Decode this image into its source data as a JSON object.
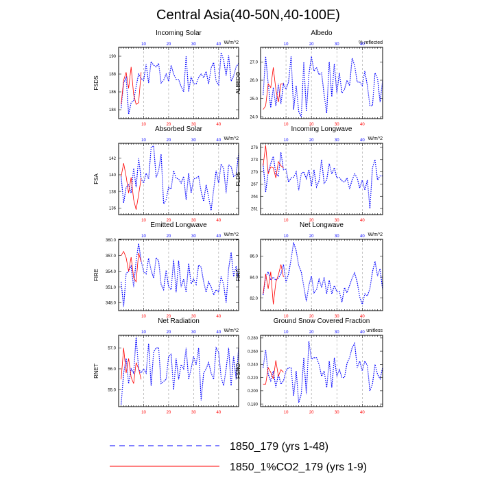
{
  "title": "Central Asia(40-50N,40-100E)",
  "colors": {
    "blue_series": "#0000ff",
    "red_series": "#ff0000",
    "frame": "#000000",
    "grid": "#9a9a9a"
  },
  "legend": {
    "items": [
      {
        "label": "1850_179 (yrs 1-48)",
        "color": "#0000ff",
        "style": "dashed"
      },
      {
        "label": "1850_1%CO2_179 (yrs 1-9)",
        "color": "#ff0000",
        "style": "solid"
      }
    ]
  },
  "chart_data": [
    {
      "type": "line",
      "title": "Incoming Solar",
      "ylabel": "FSDS",
      "units": "W/m^2",
      "xlim": [
        0,
        48
      ],
      "ylim": [
        183,
        191
      ],
      "yticks": [
        184,
        186,
        188,
        190
      ],
      "ydecimals": 0,
      "top_xticks": [
        10,
        20,
        30,
        40
      ],
      "bottom_xticks": [
        10,
        20,
        30,
        40
      ],
      "grid": "vertical dashed at 10,20,30,40",
      "series": [
        {
          "name": "1850_179 (yrs 1-48)",
          "values": [
            184.2,
            187.0,
            187.6,
            183.5,
            184.8,
            185.0,
            186.6,
            188.0,
            187.5,
            187.3,
            189.1,
            187.0,
            189.4,
            189.0,
            188.8,
            189.2,
            187.0,
            187.3,
            188.0,
            187.2,
            189.0,
            188.0,
            187.4,
            187.4,
            186.6,
            186.0,
            190.0,
            186.0,
            187.7,
            186.9,
            186.9,
            187.6,
            188.0,
            187.6,
            188.3,
            186.9,
            188.7,
            189.3,
            187.2,
            186.8,
            190.4,
            189.6,
            187.8,
            190.1,
            187.2,
            187.8,
            188.8,
            189.2
          ]
        },
        {
          "name": "1850_1%CO2_179 (yrs 1-9)",
          "values": [
            184.6,
            187.3,
            188.2,
            186.4,
            188.8,
            185.7,
            184.6,
            184.8,
            188.2
          ]
        }
      ]
    },
    {
      "type": "line",
      "title": "Albedo",
      "ylabel": "ALBEDO",
      "units": "% reflected",
      "xlim": [
        0,
        48
      ],
      "ylim": [
        23.9,
        27.8
      ],
      "yticks": [
        24.0,
        25.0,
        26.0,
        27.0
      ],
      "ydecimals": 1,
      "top_xticks": [
        10,
        20,
        30,
        40
      ],
      "bottom_xticks": [
        10,
        20,
        30,
        40
      ],
      "grid": "vertical dashed at 10,20,30,40",
      "series": [
        {
          "name": "1850_179 (yrs 1-48)",
          "values": [
            25.2,
            27.3,
            25.8,
            24.5,
            25.6,
            24.6,
            25.8,
            24.7,
            25.8,
            25.5,
            25.9,
            27.3,
            24.4,
            25.7,
            24.3,
            24.0,
            27.0,
            24.3,
            26.3,
            27.3,
            26.5,
            26.7,
            26.3,
            26.4,
            25.2,
            24.2,
            27.0,
            25.1,
            26.9,
            25.3,
            26.4,
            25.3,
            25.5,
            26.0,
            25.7,
            27.2,
            26.8,
            25.9,
            25.9,
            25.7,
            26.5,
            25.7,
            24.6,
            24.6,
            26.4,
            26.1,
            24.8,
            26.0
          ]
        },
        {
          "name": "1850_1%CO2_179 (yrs 1-9)",
          "values": [
            24.4,
            24.6,
            25.8,
            25.6,
            26.7,
            25.5,
            24.8,
            25.8,
            25.8
          ]
        }
      ]
    },
    {
      "type": "line",
      "title": "Absorbed Solar",
      "ylabel": "FSA",
      "units": "W/m^2",
      "xlim": [
        0,
        48
      ],
      "ylim": [
        135.2,
        143.8
      ],
      "yticks": [
        136,
        138,
        140,
        142
      ],
      "ydecimals": 0,
      "top_xticks": [
        10,
        20,
        30,
        40
      ],
      "bottom_xticks": [
        10,
        20,
        30,
        40
      ],
      "grid": "vertical dashed at 10,20,30,40",
      "series": [
        {
          "name": "1850_179 (yrs 1-48)",
          "values": [
            139.8,
            136.6,
            138.5,
            138.8,
            137.8,
            140.8,
            138.5,
            142.0,
            139.5,
            139.0,
            140.2,
            139.5,
            143.3,
            143.5,
            139.7,
            140.5,
            142.5,
            136.5,
            137.0,
            138.5,
            138.3,
            140.5,
            139.6,
            139.5,
            139.0,
            139.8,
            137.0,
            140.2,
            137.8,
            139.5,
            139.6,
            139.8,
            138.0,
            136.8,
            138.8,
            137.3,
            135.7,
            138.2,
            140.5,
            139.0,
            141.3,
            140.8,
            137.8,
            141.2,
            141.0,
            139.8,
            140.0,
            142.6
          ]
        },
        {
          "name": "1850_1%CO2_179 (yrs 1-9)",
          "values": [
            139.8,
            141.4,
            139.8,
            137.8,
            139.7,
            137.0,
            135.8,
            137.6,
            139.6
          ]
        }
      ]
    },
    {
      "type": "line",
      "title": "Incoming Longwave",
      "ylabel": "FLDS",
      "units": "W/m^2",
      "xlim": [
        0,
        48
      ],
      "ylim": [
        259.5,
        277
      ],
      "yticks": [
        261,
        264,
        267,
        270,
        273,
        276
      ],
      "ydecimals": 0,
      "top_xticks": [
        10,
        20,
        30,
        40
      ],
      "bottom_xticks": [
        10,
        20,
        30,
        40
      ],
      "grid": "vertical dashed at 10,20,30,40",
      "series": [
        {
          "name": "1850_179 (yrs 1-48)",
          "values": [
            272.0,
            265.0,
            270.0,
            272.0,
            273.8,
            269.5,
            269.0,
            274.8,
            270.5,
            270.6,
            267.5,
            268.5,
            268.7,
            270.0,
            265.5,
            269.5,
            270.0,
            268.3,
            270.5,
            266.5,
            270.5,
            266.3,
            267.8,
            273.0,
            267.2,
            268.0,
            272.0,
            269.5,
            271.0,
            268.5,
            268.6,
            267.8,
            267.5,
            268.5,
            265.8,
            268.0,
            269.5,
            268.5,
            266.0,
            268.0,
            265.5,
            268.0,
            261.0,
            271.0,
            273.0,
            268.0,
            269.0,
            269.0
          ]
        },
        {
          "name": "1850_1%CO2_179 (yrs 1-9)",
          "values": [
            271.5,
            276.5,
            269.5,
            271.2,
            271.0,
            268.5,
            272.5,
            271.5,
            271.0
          ]
        }
      ]
    },
    {
      "type": "line",
      "title": "Emitted Longwave",
      "ylabel": "FIRE",
      "units": "W/m^2",
      "xlim": [
        0,
        48
      ],
      "ylim": [
        346.5,
        360.1
      ],
      "yticks": [
        348.0,
        351.0,
        354.0,
        357.0,
        360.0
      ],
      "ydecimals": 1,
      "top_xticks": [
        10,
        20,
        30,
        40
      ],
      "bottom_xticks": [
        10,
        20,
        30,
        40
      ],
      "grid": "vertical dashed at 10,20,30,40",
      "series": [
        {
          "name": "1850_179 (yrs 1-48)",
          "values": [
            352.0,
            347.2,
            353.6,
            354.0,
            355.0,
            351.0,
            356.0,
            359.3,
            356.0,
            354.0,
            353.5,
            356.5,
            354.2,
            352.7,
            356.6,
            356.0,
            351.5,
            350.5,
            354.2,
            351.0,
            350.5,
            356.2,
            350.0,
            356.0,
            351.0,
            352.5,
            350.0,
            355.5,
            351.6,
            352.5,
            351.5,
            355.2,
            354.8,
            352.0,
            350.0,
            352.0,
            351.0,
            349.5,
            350.5,
            350.0,
            353.0,
            351.5,
            348.0,
            354.5,
            357.6,
            353.0,
            355.0,
            352.0
          ]
        },
        {
          "name": "1850_1%CO2_179 (yrs 1-9)",
          "values": [
            357.0,
            357.8,
            356.6,
            354.0,
            356.7,
            352.8,
            352.0,
            357.5,
            355.8
          ]
        }
      ]
    },
    {
      "type": "line",
      "title": "Net Longwave",
      "ylabel": "FIRA",
      "units": "W/m^2",
      "xlim": [
        0,
        48
      ],
      "ylim": [
        80.8,
        87.6
      ],
      "yticks": [
        82.0,
        84.0,
        86.0
      ],
      "ydecimals": 1,
      "top_xticks": [
        10,
        20,
        30,
        40
      ],
      "bottom_xticks": [
        10,
        20,
        30,
        40
      ],
      "grid": "vertical dashed at 10,20,30,40",
      "series": [
        {
          "name": "1850_179 (yrs 1-48)",
          "values": [
            82.3,
            84.0,
            84.5,
            83.7,
            84.0,
            83.7,
            83.9,
            84.3,
            85.2,
            83.5,
            84.3,
            85.7,
            87.3,
            86.5,
            85.1,
            84.5,
            83.1,
            81.7,
            83.2,
            84.1,
            82.5,
            82.8,
            83.8,
            83.0,
            84.0,
            82.4,
            83.7,
            82.4,
            83.2,
            82.6,
            82.6,
            81.6,
            83.0,
            82.5,
            83.2,
            83.9,
            84.4,
            83.5,
            82.1,
            81.4,
            82.4,
            82.2,
            82.9,
            84.5,
            85.5,
            84.1,
            84.8,
            82.8
          ]
        },
        {
          "name": "1850_1%CO2_179 (yrs 1-9)",
          "values": [
            82.4,
            84.3,
            82.9,
            84.5,
            81.4,
            83.5,
            84.2,
            85.2,
            84.0
          ]
        }
      ]
    },
    {
      "type": "line",
      "title": "Net Radiation",
      "ylabel": "RNET",
      "units": "W/m^2",
      "xlim": [
        0,
        48
      ],
      "ylim": [
        54.2,
        57.6
      ],
      "yticks": [
        55.0,
        56.0,
        57.0
      ],
      "ydecimals": 1,
      "top_xticks": [
        10,
        20,
        30,
        40
      ],
      "bottom_xticks": [
        10,
        20,
        30,
        40
      ],
      "grid": "vertical dashed at 10,20,30,40",
      "series": [
        {
          "name": "1850_179 (yrs 1-48)",
          "values": [
            54.3,
            55.8,
            56.5,
            55.3,
            56.0,
            55.8,
            57.5,
            56.0,
            55.8,
            56.0,
            55.8,
            57.2,
            55.2,
            56.8,
            57.0,
            57.0,
            55.3,
            55.4,
            55.5,
            56.6,
            56.7,
            55.0,
            56.5,
            55.5,
            56.2,
            56.0,
            57.0,
            55.5,
            56.0,
            56.6,
            56.2,
            57.0,
            54.5,
            55.8,
            56.0,
            56.3,
            55.8,
            55.5,
            57.0,
            56.8,
            55.6,
            55.2,
            56.0,
            57.0,
            55.2,
            56.6,
            55.5,
            57.0
          ]
        },
        {
          "name": "1850_1%CO2_179 (yrs 1-9)",
          "values": [
            55.5,
            57.0,
            55.8,
            56.5,
            55.6,
            55.3,
            56.3,
            56.0,
            55.5
          ]
        }
      ]
    },
    {
      "type": "line",
      "title": "Ground Snow Covered Fraction",
      "ylabel": "FSNO",
      "units": "unitless",
      "xlim": [
        0,
        48
      ],
      "ylim": [
        0.176,
        0.284
      ],
      "yticks": [
        0.18,
        0.2,
        0.22,
        0.24,
        0.26,
        0.28
      ],
      "ydecimals": 3,
      "top_xticks": [
        10,
        20,
        30,
        40
      ],
      "bottom_xticks": [
        10,
        20,
        30,
        40
      ],
      "grid": "vertical dashed at 10,20,30,40",
      "series": [
        {
          "name": "1850_179 (yrs 1-48)",
          "values": [
            0.235,
            0.262,
            0.225,
            0.215,
            0.23,
            0.205,
            0.225,
            0.21,
            0.215,
            0.23,
            0.235,
            0.235,
            0.192,
            0.23,
            0.182,
            0.195,
            0.25,
            0.195,
            0.275,
            0.248,
            0.25,
            0.25,
            0.24,
            0.222,
            0.23,
            0.205,
            0.245,
            0.205,
            0.25,
            0.222,
            0.232,
            0.22,
            0.22,
            0.242,
            0.25,
            0.265,
            0.272,
            0.235,
            0.245,
            0.23,
            0.245,
            0.238,
            0.2,
            0.21,
            0.24,
            0.225,
            0.218,
            0.235
          ]
        },
        {
          "name": "1850_1%CO2_179 (yrs 1-9)",
          "values": [
            0.21,
            0.21,
            0.235,
            0.228,
            0.218,
            0.246,
            0.222,
            0.232,
            0.228
          ]
        }
      ]
    }
  ]
}
